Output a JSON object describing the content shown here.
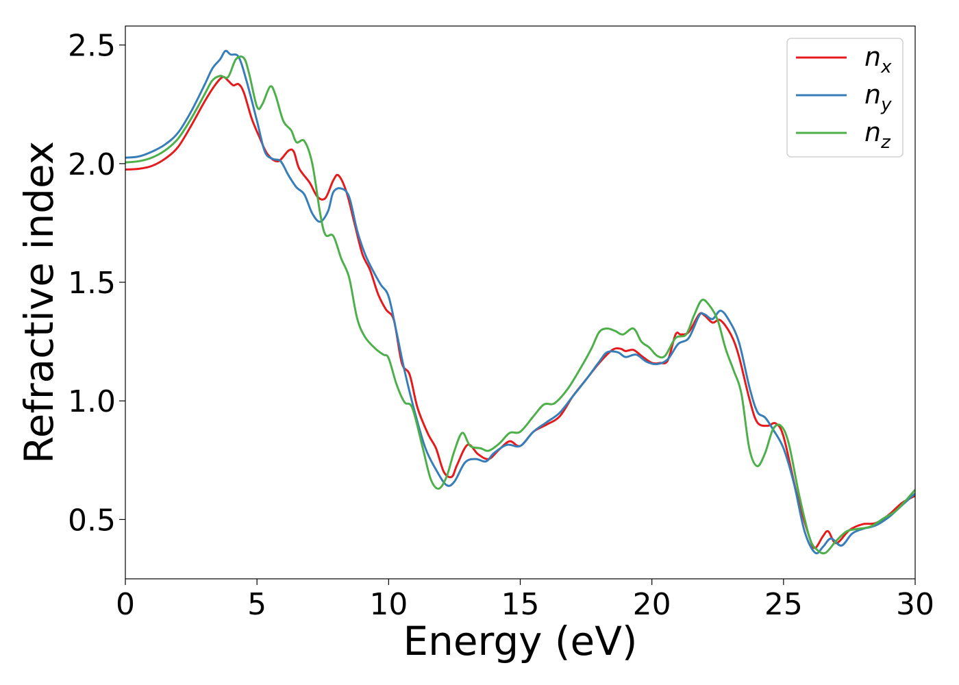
{
  "chart_data": {
    "type": "line",
    "title": "",
    "xlabel": "Energy (eV)",
    "ylabel": "Refractive index",
    "xlim": [
      0,
      30
    ],
    "ylim": [
      0.25,
      2.58
    ],
    "xticks": [
      0,
      5,
      10,
      15,
      20,
      25,
      30
    ],
    "yticks": [
      0.5,
      1.0,
      1.5,
      2.0,
      2.5
    ],
    "xtick_labels": [
      "0",
      "5",
      "10",
      "15",
      "20",
      "25",
      "30"
    ],
    "ytick_labels": [
      "0.5",
      "1.0",
      "1.5",
      "2.0",
      "2.5"
    ],
    "grid": false,
    "legend_position": "top-right",
    "series": [
      {
        "name": "n",
        "subscript": "x",
        "color": "#e41a1c",
        "points": [
          [
            0,
            1.975
          ],
          [
            0.5,
            1.978
          ],
          [
            1.0,
            1.99
          ],
          [
            1.5,
            2.02
          ],
          [
            2.0,
            2.07
          ],
          [
            2.5,
            2.16
          ],
          [
            3.0,
            2.26
          ],
          [
            3.4,
            2.33
          ],
          [
            3.7,
            2.365
          ],
          [
            3.9,
            2.35
          ],
          [
            4.1,
            2.33
          ],
          [
            4.3,
            2.335
          ],
          [
            4.5,
            2.3
          ],
          [
            4.8,
            2.19
          ],
          [
            5.1,
            2.11
          ],
          [
            5.4,
            2.04
          ],
          [
            5.8,
            2.01
          ],
          [
            6.2,
            2.055
          ],
          [
            6.4,
            2.05
          ],
          [
            6.6,
            1.98
          ],
          [
            7.0,
            1.92
          ],
          [
            7.3,
            1.86
          ],
          [
            7.6,
            1.855
          ],
          [
            7.9,
            1.93
          ],
          [
            8.1,
            1.95
          ],
          [
            8.4,
            1.88
          ],
          [
            8.7,
            1.75
          ],
          [
            9.0,
            1.62
          ],
          [
            9.3,
            1.55
          ],
          [
            9.6,
            1.45
          ],
          [
            9.9,
            1.385
          ],
          [
            10.2,
            1.34
          ],
          [
            10.5,
            1.16
          ],
          [
            10.8,
            1.11
          ],
          [
            11.1,
            0.97
          ],
          [
            11.5,
            0.86
          ],
          [
            11.8,
            0.8
          ],
          [
            12.1,
            0.7
          ],
          [
            12.4,
            0.68
          ],
          [
            12.6,
            0.73
          ],
          [
            13.0,
            0.815
          ],
          [
            13.4,
            0.775
          ],
          [
            13.8,
            0.755
          ],
          [
            14.2,
            0.795
          ],
          [
            14.6,
            0.83
          ],
          [
            15.0,
            0.81
          ],
          [
            15.5,
            0.87
          ],
          [
            16.0,
            0.9
          ],
          [
            16.5,
            0.935
          ],
          [
            17.0,
            1.02
          ],
          [
            17.5,
            1.09
          ],
          [
            18.0,
            1.16
          ],
          [
            18.5,
            1.215
          ],
          [
            18.8,
            1.22
          ],
          [
            19.0,
            1.21
          ],
          [
            19.3,
            1.215
          ],
          [
            19.6,
            1.19
          ],
          [
            20.0,
            1.16
          ],
          [
            20.3,
            1.16
          ],
          [
            20.6,
            1.17
          ],
          [
            20.9,
            1.28
          ],
          [
            21.1,
            1.28
          ],
          [
            21.4,
            1.29
          ],
          [
            21.8,
            1.365
          ],
          [
            22.0,
            1.36
          ],
          [
            22.3,
            1.33
          ],
          [
            22.6,
            1.34
          ],
          [
            23.0,
            1.28
          ],
          [
            23.3,
            1.19
          ],
          [
            23.7,
            1.01
          ],
          [
            24.0,
            0.91
          ],
          [
            24.4,
            0.895
          ],
          [
            24.7,
            0.905
          ],
          [
            25.0,
            0.85
          ],
          [
            25.5,
            0.61
          ],
          [
            26.0,
            0.42
          ],
          [
            26.2,
            0.38
          ],
          [
            26.5,
            0.43
          ],
          [
            26.7,
            0.45
          ],
          [
            27.0,
            0.4
          ],
          [
            27.5,
            0.455
          ],
          [
            28.0,
            0.48
          ],
          [
            28.5,
            0.485
          ],
          [
            29.0,
            0.52
          ],
          [
            29.5,
            0.57
          ],
          [
            30.0,
            0.6
          ]
        ]
      },
      {
        "name": "n",
        "subscript": "y",
        "color": "#377eb8",
        "points": [
          [
            0,
            2.025
          ],
          [
            0.5,
            2.03
          ],
          [
            1.0,
            2.05
          ],
          [
            1.5,
            2.08
          ],
          [
            2.0,
            2.13
          ],
          [
            2.5,
            2.22
          ],
          [
            3.0,
            2.33
          ],
          [
            3.3,
            2.4
          ],
          [
            3.6,
            2.44
          ],
          [
            3.8,
            2.475
          ],
          [
            4.0,
            2.46
          ],
          [
            4.3,
            2.45
          ],
          [
            4.6,
            2.35
          ],
          [
            5.0,
            2.18
          ],
          [
            5.3,
            2.05
          ],
          [
            5.6,
            2.02
          ],
          [
            5.9,
            2.01
          ],
          [
            6.2,
            1.95
          ],
          [
            6.5,
            1.9
          ],
          [
            6.8,
            1.87
          ],
          [
            7.1,
            1.79
          ],
          [
            7.4,
            1.755
          ],
          [
            7.7,
            1.8
          ],
          [
            7.9,
            1.88
          ],
          [
            8.2,
            1.895
          ],
          [
            8.5,
            1.86
          ],
          [
            8.8,
            1.72
          ],
          [
            9.1,
            1.62
          ],
          [
            9.4,
            1.55
          ],
          [
            9.7,
            1.49
          ],
          [
            10.0,
            1.44
          ],
          [
            10.3,
            1.29
          ],
          [
            10.6,
            1.13
          ],
          [
            11.0,
            0.95
          ],
          [
            11.4,
            0.8
          ],
          [
            11.8,
            0.71
          ],
          [
            12.2,
            0.645
          ],
          [
            12.5,
            0.66
          ],
          [
            12.9,
            0.74
          ],
          [
            13.3,
            0.755
          ],
          [
            13.7,
            0.745
          ],
          [
            14.0,
            0.78
          ],
          [
            14.5,
            0.815
          ],
          [
            15.0,
            0.81
          ],
          [
            15.5,
            0.87
          ],
          [
            16.0,
            0.91
          ],
          [
            16.5,
            0.95
          ],
          [
            17.0,
            1.02
          ],
          [
            17.5,
            1.09
          ],
          [
            18.0,
            1.165
          ],
          [
            18.3,
            1.205
          ],
          [
            18.7,
            1.205
          ],
          [
            19.0,
            1.185
          ],
          [
            19.4,
            1.195
          ],
          [
            19.8,
            1.165
          ],
          [
            20.2,
            1.155
          ],
          [
            20.6,
            1.175
          ],
          [
            21.0,
            1.24
          ],
          [
            21.4,
            1.265
          ],
          [
            21.8,
            1.36
          ],
          [
            22.0,
            1.365
          ],
          [
            22.3,
            1.345
          ],
          [
            22.6,
            1.38
          ],
          [
            22.9,
            1.345
          ],
          [
            23.3,
            1.25
          ],
          [
            23.7,
            1.06
          ],
          [
            24.0,
            0.955
          ],
          [
            24.3,
            0.93
          ],
          [
            24.6,
            0.88
          ],
          [
            25.0,
            0.8
          ],
          [
            25.4,
            0.65
          ],
          [
            25.8,
            0.45
          ],
          [
            26.2,
            0.36
          ],
          [
            26.5,
            0.385
          ],
          [
            26.8,
            0.42
          ],
          [
            27.2,
            0.39
          ],
          [
            27.6,
            0.44
          ],
          [
            28.0,
            0.46
          ],
          [
            28.5,
            0.475
          ],
          [
            29.0,
            0.51
          ],
          [
            29.5,
            0.56
          ],
          [
            30.0,
            0.61
          ]
        ]
      },
      {
        "name": "n",
        "subscript": "z",
        "color": "#4daf4a",
        "points": [
          [
            0,
            2.005
          ],
          [
            0.5,
            2.01
          ],
          [
            1.0,
            2.025
          ],
          [
            1.5,
            2.055
          ],
          [
            2.0,
            2.105
          ],
          [
            2.5,
            2.19
          ],
          [
            3.0,
            2.29
          ],
          [
            3.3,
            2.35
          ],
          [
            3.6,
            2.37
          ],
          [
            3.9,
            2.365
          ],
          [
            4.2,
            2.44
          ],
          [
            4.5,
            2.445
          ],
          [
            4.7,
            2.38
          ],
          [
            5.0,
            2.24
          ],
          [
            5.2,
            2.25
          ],
          [
            5.5,
            2.325
          ],
          [
            5.7,
            2.29
          ],
          [
            6.0,
            2.18
          ],
          [
            6.3,
            2.14
          ],
          [
            6.5,
            2.09
          ],
          [
            6.8,
            2.095
          ],
          [
            7.1,
            2.0
          ],
          [
            7.4,
            1.79
          ],
          [
            7.6,
            1.7
          ],
          [
            7.9,
            1.695
          ],
          [
            8.2,
            1.6
          ],
          [
            8.5,
            1.52
          ],
          [
            8.8,
            1.35
          ],
          [
            9.1,
            1.27
          ],
          [
            9.5,
            1.22
          ],
          [
            9.8,
            1.195
          ],
          [
            10.0,
            1.18
          ],
          [
            10.3,
            1.07
          ],
          [
            10.6,
            0.995
          ],
          [
            10.9,
            0.97
          ],
          [
            11.3,
            0.8
          ],
          [
            11.6,
            0.67
          ],
          [
            11.9,
            0.63
          ],
          [
            12.2,
            0.68
          ],
          [
            12.5,
            0.79
          ],
          [
            12.8,
            0.865
          ],
          [
            13.1,
            0.81
          ],
          [
            13.5,
            0.8
          ],
          [
            13.8,
            0.79
          ],
          [
            14.2,
            0.82
          ],
          [
            14.6,
            0.865
          ],
          [
            15.0,
            0.87
          ],
          [
            15.5,
            0.935
          ],
          [
            15.9,
            0.985
          ],
          [
            16.3,
            0.99
          ],
          [
            16.8,
            1.05
          ],
          [
            17.3,
            1.14
          ],
          [
            17.7,
            1.22
          ],
          [
            18.0,
            1.29
          ],
          [
            18.3,
            1.305
          ],
          [
            18.6,
            1.295
          ],
          [
            18.9,
            1.28
          ],
          [
            19.3,
            1.305
          ],
          [
            19.6,
            1.25
          ],
          [
            19.9,
            1.225
          ],
          [
            20.2,
            1.19
          ],
          [
            20.5,
            1.19
          ],
          [
            20.9,
            1.265
          ],
          [
            21.3,
            1.28
          ],
          [
            21.6,
            1.36
          ],
          [
            21.9,
            1.425
          ],
          [
            22.2,
            1.4
          ],
          [
            22.5,
            1.34
          ],
          [
            22.8,
            1.22
          ],
          [
            23.1,
            1.13
          ],
          [
            23.4,
            1.03
          ],
          [
            23.7,
            0.8
          ],
          [
            24.0,
            0.725
          ],
          [
            24.3,
            0.78
          ],
          [
            24.6,
            0.88
          ],
          [
            24.9,
            0.895
          ],
          [
            25.2,
            0.82
          ],
          [
            25.6,
            0.6
          ],
          [
            26.0,
            0.42
          ],
          [
            26.3,
            0.37
          ],
          [
            26.6,
            0.36
          ],
          [
            27.0,
            0.41
          ],
          [
            27.4,
            0.45
          ],
          [
            27.8,
            0.46
          ],
          [
            28.3,
            0.47
          ],
          [
            28.8,
            0.505
          ],
          [
            29.3,
            0.54
          ],
          [
            30.0,
            0.625
          ]
        ]
      }
    ]
  }
}
